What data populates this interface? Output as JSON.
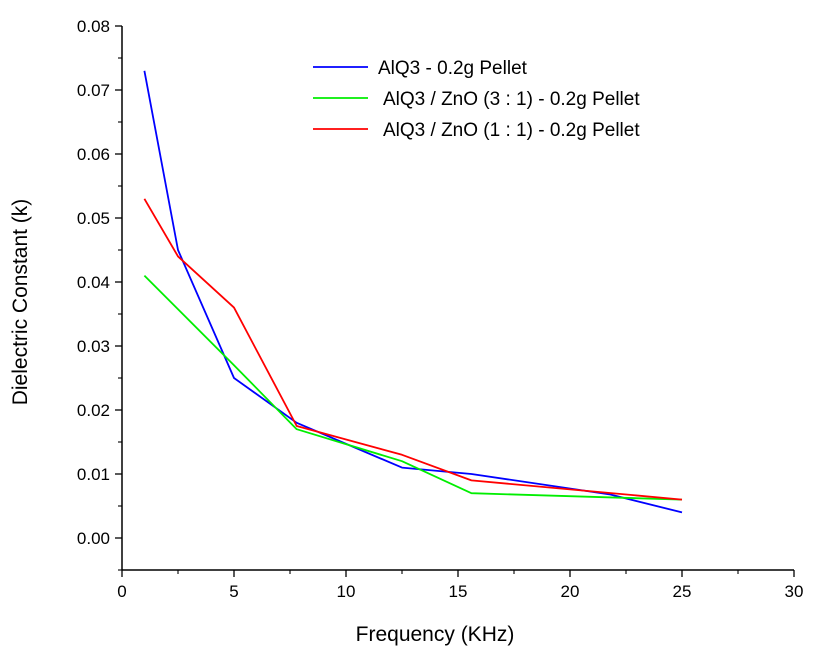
{
  "chart_data": {
    "type": "line",
    "title": "",
    "xlabel": "Frequency (KHz)",
    "ylabel": "Dielectric Constant (k)",
    "xlim": [
      0,
      30
    ],
    "ylim": [
      -0.005,
      0.08
    ],
    "xticks": [
      0,
      5,
      10,
      15,
      20,
      25,
      30
    ],
    "xtick_labels": [
      "0",
      "5",
      "10",
      "15",
      "20",
      "25",
      "30"
    ],
    "yticks": [
      0.0,
      0.01,
      0.02,
      0.03,
      0.04,
      0.05,
      0.06,
      0.07,
      0.08
    ],
    "ytick_labels": [
      "0.00",
      "0.01",
      "0.02",
      "0.03",
      "0.04",
      "0.05",
      "0.06",
      "0.07",
      "0.08"
    ],
    "grid": false,
    "legend_position": "top-right",
    "series": [
      {
        "name": "AlQ3 - 0.2g Pellet",
        "color": "#0000ff",
        "x": [
          1,
          2.5,
          5,
          7.8,
          12.5,
          15.6,
          21.8,
          25
        ],
        "y": [
          0.073,
          0.045,
          0.025,
          0.018,
          0.011,
          0.01,
          0.0068,
          0.004
        ]
      },
      {
        "name": "AlQ3 / ZnO (3 : 1) - 0.2g Pellet",
        "color": "#00ee00",
        "x": [
          1,
          5,
          7.8,
          12.5,
          15.6,
          25
        ],
        "y": [
          0.041,
          0.027,
          0.017,
          0.012,
          0.007,
          0.006
        ]
      },
      {
        "name": "AlQ3 / ZnO (1 : 1) - 0.2g Pellet",
        "color": "#ff0000",
        "x": [
          1,
          2.5,
          5,
          7.8,
          12.5,
          15.6,
          25
        ],
        "y": [
          0.053,
          0.044,
          0.036,
          0.0175,
          0.013,
          0.009,
          0.006
        ]
      }
    ]
  }
}
